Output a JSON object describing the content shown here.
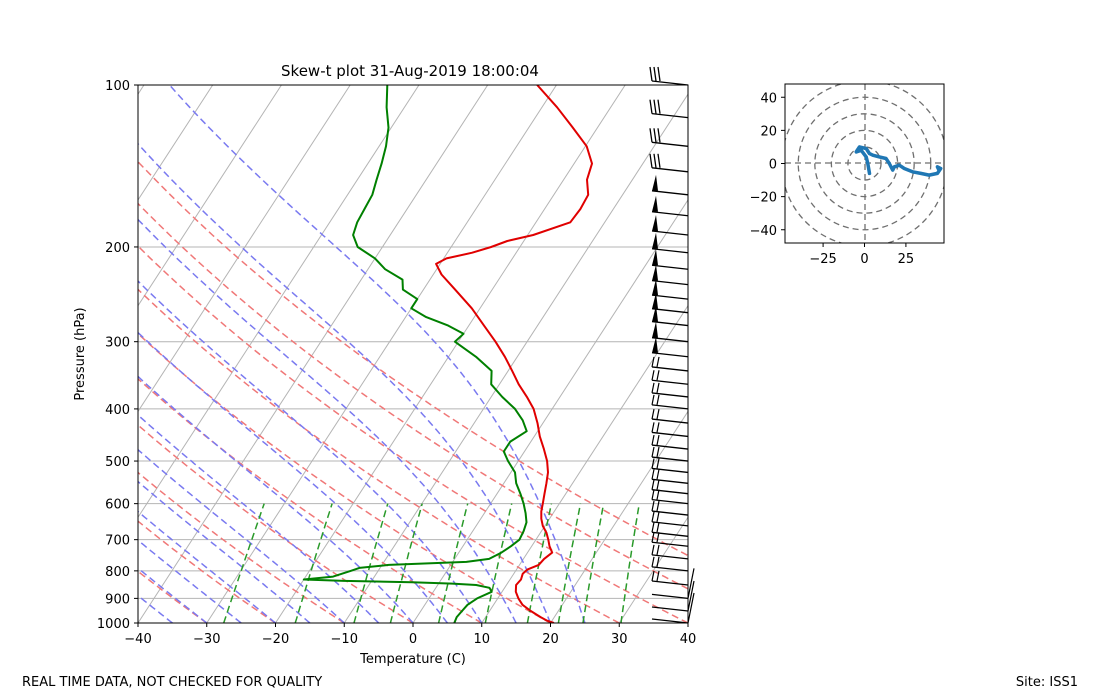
{
  "footer": {
    "left_note": "REAL TIME DATA, NOT CHECKED FOR QUALITY",
    "right_note": "Site: ISS1"
  },
  "chart_data": [
    {
      "type": "line",
      "subtype": "skew-t",
      "title": "Skew-t plot 31-Aug-2019 18:00:04",
      "xlabel": "Temperature (C)",
      "ylabel": "Pressure (hPa)",
      "xlim": [
        -40,
        40
      ],
      "ylim": [
        1000,
        100
      ],
      "y_scale": "log",
      "x_ticks": [
        "−40",
        "−30",
        "−20",
        "−10",
        "0",
        "10",
        "20",
        "30",
        "40"
      ],
      "y_ticks": [
        "100",
        "200",
        "300",
        "400",
        "500",
        "600",
        "700",
        "800",
        "900",
        "1000"
      ],
      "grid": true,
      "background_lines": {
        "isotherms_color": "#b4b4b4",
        "dry_adiabats_color": "#f07878",
        "moist_adiabats_color": "#7a7af0",
        "mixing_ratio_color": "#2a9a2a"
      },
      "series": [
        {
          "color": "#e00000",
          "points": [
            [
              1000,
              20.5
            ],
            [
              990,
              19.3
            ],
            [
              975,
              18.0
            ],
            [
              950,
              16.0
            ],
            [
              925,
              14.2
            ],
            [
              900,
              13.0
            ],
            [
              875,
              12.0
            ],
            [
              850,
              11.4
            ],
            [
              830,
              11.6
            ],
            [
              810,
              11.3
            ],
            [
              795,
              11.6
            ],
            [
              780,
              12.8
            ],
            [
              760,
              13.0
            ],
            [
              740,
              13.6
            ],
            [
              720,
              12.6
            ],
            [
              700,
              11.8
            ],
            [
              680,
              10.9
            ],
            [
              660,
              9.7
            ],
            [
              640,
              8.8
            ],
            [
              620,
              8.1
            ],
            [
              600,
              7.6
            ],
            [
              575,
              6.9
            ],
            [
              550,
              6.2
            ],
            [
              525,
              5.4
            ],
            [
              500,
              4.2
            ],
            [
              475,
              2.6
            ],
            [
              450,
              0.8
            ],
            [
              425,
              -0.8
            ],
            [
              400,
              -2.7
            ],
            [
              380,
              -4.8
            ],
            [
              360,
              -7.2
            ],
            [
              340,
              -9.4
            ],
            [
              320,
              -11.8
            ],
            [
              300,
              -14.6
            ],
            [
              280,
              -17.8
            ],
            [
              260,
              -21.2
            ],
            [
              240,
              -25.4
            ],
            [
              225,
              -28.8
            ],
            [
              215,
              -30.6
            ],
            [
              210,
              -29.6
            ],
            [
              205,
              -26.4
            ],
            [
              200,
              -24.2
            ],
            [
              195,
              -22.4
            ],
            [
              190,
              -19.2
            ],
            [
              180,
              -15.0
            ],
            [
              170,
              -14.8
            ],
            [
              160,
              -15.0
            ],
            [
              150,
              -16.6
            ],
            [
              140,
              -17.4
            ],
            [
              130,
              -19.8
            ],
            [
              120,
              -23.6
            ],
            [
              110,
              -27.8
            ],
            [
              100,
              -32.8
            ]
          ]
        },
        {
          "color": "#008000",
          "points": [
            [
              1000,
              6.0
            ],
            [
              975,
              5.8
            ],
            [
              950,
              6.0
            ],
            [
              925,
              6.2
            ],
            [
              900,
              7.0
            ],
            [
              875,
              8.5
            ],
            [
              860,
              7.8
            ],
            [
              850,
              5.6
            ],
            [
              845,
              2.0
            ],
            [
              840,
              -4.0
            ],
            [
              835,
              -14.0
            ],
            [
              830,
              -20.0
            ],
            [
              820,
              -16.0
            ],
            [
              800,
              -14.0
            ],
            [
              790,
              -13.0
            ],
            [
              780,
              -9.0
            ],
            [
              770,
              2.0
            ],
            [
              760,
              5.0
            ],
            [
              740,
              6.2
            ],
            [
              720,
              7.0
            ],
            [
              700,
              7.6
            ],
            [
              675,
              7.4
            ],
            [
              650,
              7.0
            ],
            [
              625,
              6.0
            ],
            [
              600,
              4.8
            ],
            [
              575,
              3.4
            ],
            [
              550,
              1.8
            ],
            [
              525,
              0.6
            ],
            [
              500,
              -1.5
            ],
            [
              480,
              -3.0
            ],
            [
              460,
              -3.0
            ],
            [
              440,
              -1.6
            ],
            [
              420,
              -3.2
            ],
            [
              400,
              -5.4
            ],
            [
              380,
              -8.4
            ],
            [
              360,
              -11.2
            ],
            [
              340,
              -12.4
            ],
            [
              320,
              -16.0
            ],
            [
              300,
              -20.5
            ],
            [
              290,
              -20.0
            ],
            [
              280,
              -23.0
            ],
            [
              270,
              -27.0
            ],
            [
              260,
              -30.0
            ],
            [
              250,
              -30.0
            ],
            [
              240,
              -33.0
            ],
            [
              230,
              -34.0
            ],
            [
              220,
              -37.5
            ],
            [
              210,
              -40.0
            ],
            [
              200,
              -43.6
            ],
            [
              190,
              -45.4
            ],
            [
              180,
              -46.0
            ],
            [
              170,
              -46.2
            ],
            [
              160,
              -46.4
            ],
            [
              150,
              -47.2
            ],
            [
              140,
              -48.0
            ],
            [
              130,
              -49.0
            ],
            [
              120,
              -50.4
            ],
            [
              110,
              -52.6
            ],
            [
              100,
              -54.6
            ]
          ]
        }
      ],
      "wind_barbs": "shown along the right edge from 1000 hPa to 100 hPa"
    },
    {
      "type": "line",
      "subtype": "hodograph",
      "xlim": [
        -48,
        48
      ],
      "ylim": [
        -48,
        48
      ],
      "x_ticks": [
        "−25",
        "0",
        "25"
      ],
      "y_ticks": [
        "40",
        "20",
        "0",
        "−20",
        "−40"
      ],
      "rings": [
        10,
        20,
        30,
        40,
        50
      ],
      "series": [
        {
          "color": "#1f77b4",
          "points": [
            [
              3,
              -6
            ],
            [
              2,
              0
            ],
            [
              1,
              4
            ],
            [
              -2,
              8
            ],
            [
              -5,
              7
            ],
            [
              -3,
              10
            ],
            [
              1,
              9
            ],
            [
              3,
              6
            ],
            [
              5,
              5
            ],
            [
              9,
              4
            ],
            [
              13,
              3
            ],
            [
              15,
              0
            ],
            [
              17,
              -4
            ],
            [
              18,
              -2
            ],
            [
              21,
              -1
            ],
            [
              24,
              -3
            ],
            [
              29,
              -5
            ],
            [
              34,
              -6
            ],
            [
              39,
              -7
            ],
            [
              44,
              -6
            ],
            [
              46,
              -3
            ],
            [
              44,
              -2
            ],
            [
              45,
              -4
            ]
          ]
        }
      ]
    }
  ]
}
